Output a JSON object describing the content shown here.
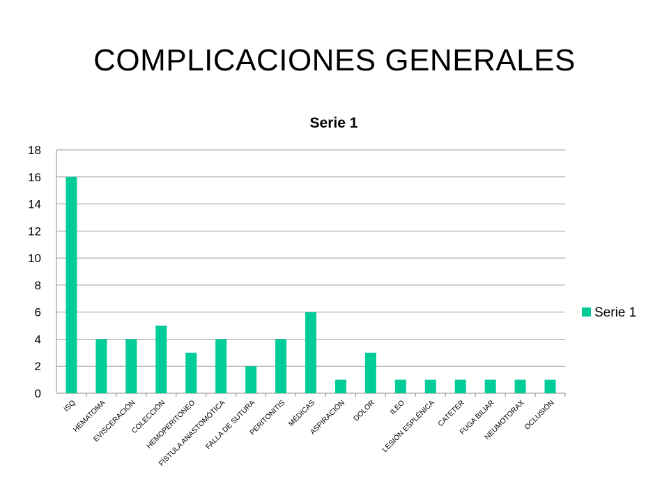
{
  "slide": {
    "title": "COMPLICACIONES GENERALES"
  },
  "chart_data": {
    "type": "bar",
    "title": "Serie 1",
    "categories": [
      "ISQ",
      "HEMATOMA",
      "EVISCERACIÓN",
      "COLECCIÓN",
      "HEMOPERITONEO",
      "FÍSTULA ANASTOMÓTICA",
      "FALLA DE SUTURA",
      "PERITONITIS",
      "MÉDICAS",
      "ASPIRACIÓN",
      "DOLOR",
      "ILEO",
      "LESIÓN ESPLÉNICA",
      "CATETER",
      "FUGA BILIAR",
      "NEUMOTORAX",
      "OCLUSIÓN"
    ],
    "series": [
      {
        "name": "Serie 1",
        "color": "#00CC99",
        "values": [
          16,
          4,
          4,
          5,
          3,
          4,
          2,
          4,
          6,
          1,
          3,
          1,
          1,
          1,
          1,
          1,
          1
        ]
      }
    ],
    "ylim": [
      0,
      18
    ],
    "yticks": [
      0,
      2,
      4,
      6,
      8,
      10,
      12,
      14,
      16,
      18
    ],
    "grid": true,
    "legend": "right"
  }
}
